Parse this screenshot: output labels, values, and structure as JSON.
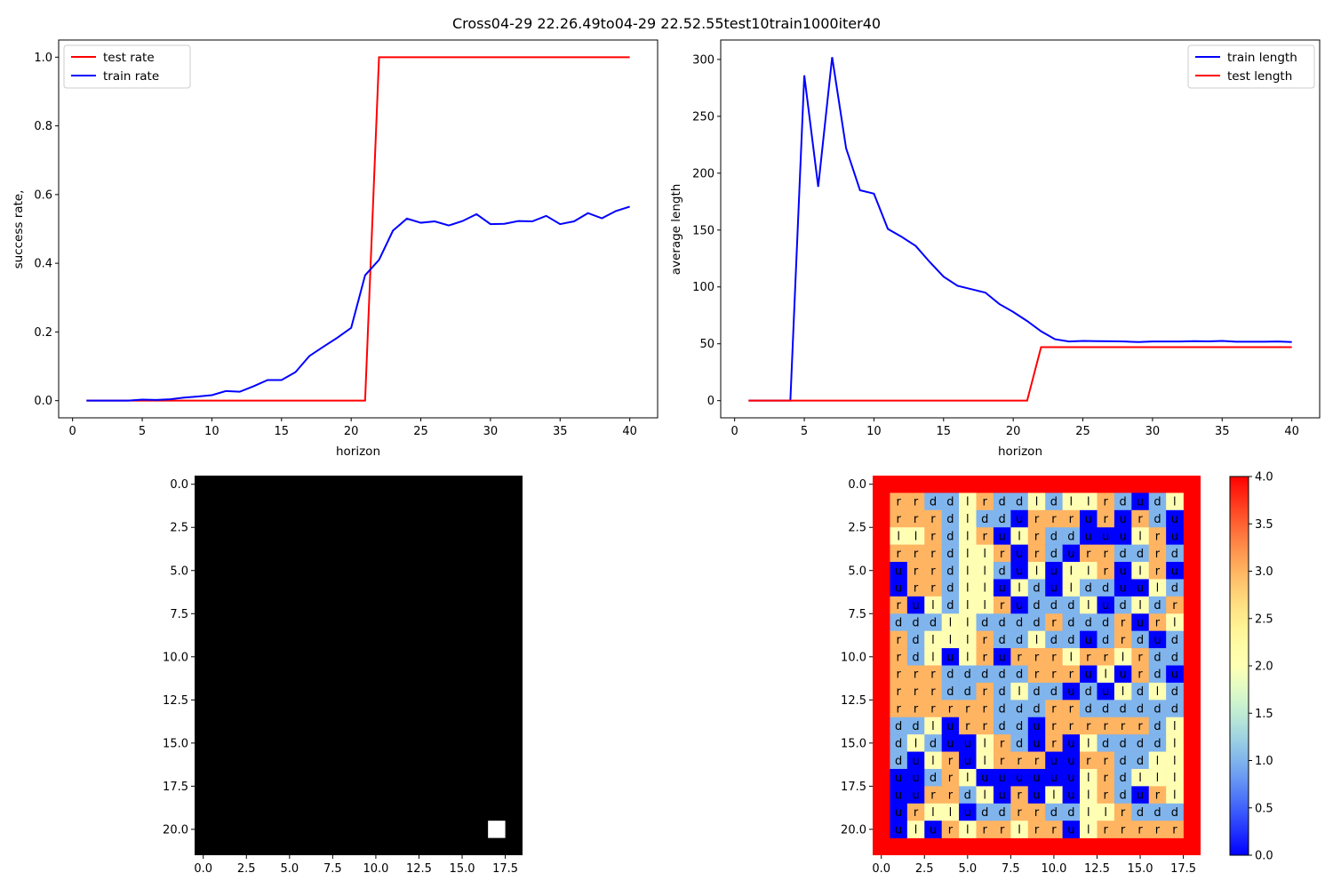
{
  "title": "Cross04-29 22.26.49to04-29 22.52.55test10train1000iter40",
  "chart_data": [
    {
      "type": "line",
      "xlabel": "horizon",
      "ylabel": "success rate,",
      "xlim": [
        -1,
        42
      ],
      "ylim": [
        -0.05,
        1.05
      ],
      "xticks": [
        0,
        5,
        10,
        15,
        20,
        25,
        30,
        35,
        40
      ],
      "yticks": [
        0.0,
        0.2,
        0.4,
        0.6,
        0.8,
        1.0
      ],
      "xtick_labels": [
        "0",
        "5",
        "10",
        "15",
        "20",
        "25",
        "30",
        "35",
        "40"
      ],
      "ytick_labels": [
        "0.0",
        "0.2",
        "0.4",
        "0.6",
        "0.8",
        "1.0"
      ],
      "legend_position": "top-left",
      "grid": false,
      "x": [
        1,
        2,
        3,
        4,
        5,
        6,
        7,
        8,
        9,
        10,
        11,
        12,
        13,
        14,
        15,
        16,
        17,
        18,
        19,
        20,
        21,
        22,
        23,
        24,
        25,
        26,
        27,
        28,
        29,
        30,
        31,
        32,
        33,
        34,
        35,
        36,
        37,
        38,
        39,
        40
      ],
      "series": [
        {
          "name": "test rate",
          "color": "#ff0000",
          "values": [
            0,
            0,
            0,
            0,
            0,
            0,
            0,
            0,
            0,
            0,
            0,
            0,
            0,
            0,
            0,
            0,
            0,
            0,
            0,
            0,
            0,
            1,
            1,
            1,
            1,
            1,
            1,
            1,
            1,
            1,
            1,
            1,
            1,
            1,
            1,
            1,
            1,
            1,
            1,
            1
          ]
        },
        {
          "name": "train rate",
          "color": "#0000ff",
          "values": [
            0,
            0,
            0,
            0,
            0.003,
            0.002,
            0.004,
            0.009,
            0.012,
            0.016,
            0.028,
            0.026,
            0.042,
            0.06,
            0.06,
            0.083,
            0.13,
            0.157,
            0.183,
            0.212,
            0.365,
            0.41,
            0.495,
            0.53,
            0.518,
            0.522,
            0.51,
            0.523,
            0.543,
            0.514,
            0.515,
            0.523,
            0.522,
            0.538,
            0.514,
            0.522,
            0.546,
            0.531,
            0.552,
            0.565
          ]
        }
      ]
    },
    {
      "type": "line",
      "xlabel": "horizon",
      "ylabel": "average length",
      "xlim": [
        -1,
        42
      ],
      "ylim": [
        -15.1,
        317.1
      ],
      "xticks": [
        0,
        5,
        10,
        15,
        20,
        25,
        30,
        35,
        40
      ],
      "yticks": [
        0,
        50,
        100,
        150,
        200,
        250,
        300
      ],
      "xtick_labels": [
        "0",
        "5",
        "10",
        "15",
        "20",
        "25",
        "30",
        "35",
        "40"
      ],
      "ytick_labels": [
        "0",
        "50",
        "100",
        "150",
        "200",
        "250",
        "300"
      ],
      "legend_position": "top-right",
      "grid": false,
      "x": [
        1,
        2,
        3,
        4,
        5,
        6,
        7,
        8,
        9,
        10,
        11,
        12,
        13,
        14,
        15,
        16,
        17,
        18,
        19,
        20,
        21,
        22,
        23,
        24,
        25,
        26,
        27,
        28,
        29,
        30,
        31,
        32,
        33,
        34,
        35,
        36,
        37,
        38,
        39,
        40
      ],
      "series": [
        {
          "name": "train length",
          "color": "#0000ff",
          "values": [
            0,
            0,
            0,
            0,
            286,
            188,
            302,
            222,
            185,
            182,
            151,
            144,
            136,
            122,
            109,
            101,
            98,
            95,
            85,
            78,
            70,
            61,
            54,
            52,
            52.5,
            52.3,
            52.2,
            52,
            51.5,
            52,
            52,
            52,
            52.3,
            52.1,
            52.5,
            51.8,
            51.8,
            51.8,
            52,
            51.5
          ]
        },
        {
          "name": "test length",
          "color": "#ff0000",
          "values": [
            0,
            0,
            0,
            0,
            0,
            0,
            0,
            0,
            0,
            0,
            0,
            0,
            0,
            0,
            0,
            0,
            0,
            0,
            0,
            0,
            0,
            47,
            47,
            47,
            47,
            47,
            47,
            47,
            47,
            47,
            47,
            47,
            47,
            47,
            47,
            47,
            47,
            47,
            47,
            47
          ]
        }
      ]
    },
    {
      "type": "heatmap",
      "xlim": [
        -0.5,
        18.5
      ],
      "ylim": [
        21.5,
        -0.5
      ],
      "xticks": [
        0,
        2.5,
        5,
        7.5,
        10,
        12.5,
        15,
        17.5
      ],
      "yticks": [
        0,
        2.5,
        5,
        7.5,
        10,
        12.5,
        15,
        17.5,
        20
      ],
      "xtick_labels": [
        "0.0",
        "2.5",
        "5.0",
        "7.5",
        "10.0",
        "12.5",
        "15.0",
        "17.5"
      ],
      "ytick_labels": [
        "0.0",
        "2.5",
        "5.0",
        "7.5",
        "10.0",
        "12.5",
        "15.0",
        "17.5",
        "20.0"
      ],
      "colormap": "gray",
      "background_value": 0,
      "highlight_cells": [
        {
          "row": 20,
          "col": 17,
          "value": 1
        }
      ]
    },
    {
      "type": "heatmap",
      "xlim": [
        -0.5,
        18.5
      ],
      "ylim": [
        21.5,
        -0.5
      ],
      "xticks": [
        0,
        2.5,
        5,
        7.5,
        10,
        12.5,
        15,
        17.5
      ],
      "yticks": [
        0,
        2.5,
        5,
        7.5,
        10,
        12.5,
        15,
        17.5,
        20
      ],
      "xtick_labels": [
        "0.0",
        "2.5",
        "5.0",
        "7.5",
        "10.0",
        "12.5",
        "15.0",
        "17.5"
      ],
      "ytick_labels": [
        "0.0",
        "2.5",
        "5.0",
        "7.5",
        "10.0",
        "12.5",
        "15.0",
        "17.5",
        "20.0"
      ],
      "colormap": "rainbow",
      "colorbar_range": [
        0,
        4
      ],
      "colorbar_ticks": [
        "0.0",
        "0.5",
        "1.0",
        "1.5",
        "2.0",
        "2.5",
        "3.0",
        "3.5",
        "4.0"
      ],
      "border_value": 4,
      "value_by_letter": {
        "u": 0,
        "d": 1,
        "l": 2,
        "r": 3
      },
      "letters": [
        "rrddlrddldllrdudl",
        "rrrdlddurrrururdu",
        "llrdlrulrdduuulru",
        "rrrdllrurdurrddrd",
        "urrdlldulullrulru",
        "urrdllulduldduuld",
        "ruldllrudddludldrd",
        "dddllddddrdddrurld",
        "rdlllrddlddudrdud",
        "rdlulrurrrlrrlrdd",
        "rrrdddddrrrulurdu",
        "rrrddrdldduduldldl",
        "rrrrrrdddrrddddddl",
        "ddlurrddurrrrrrdl",
        "dlduulrdurulddddl",
        "dulrulrrruurrddll",
        "uudrluuuuuulrdlll",
        "uurrdlurululrdurl",
        "urlluddrrddllrdddd",
        "ulurlrrlrrulrrrrr"
      ]
    }
  ]
}
